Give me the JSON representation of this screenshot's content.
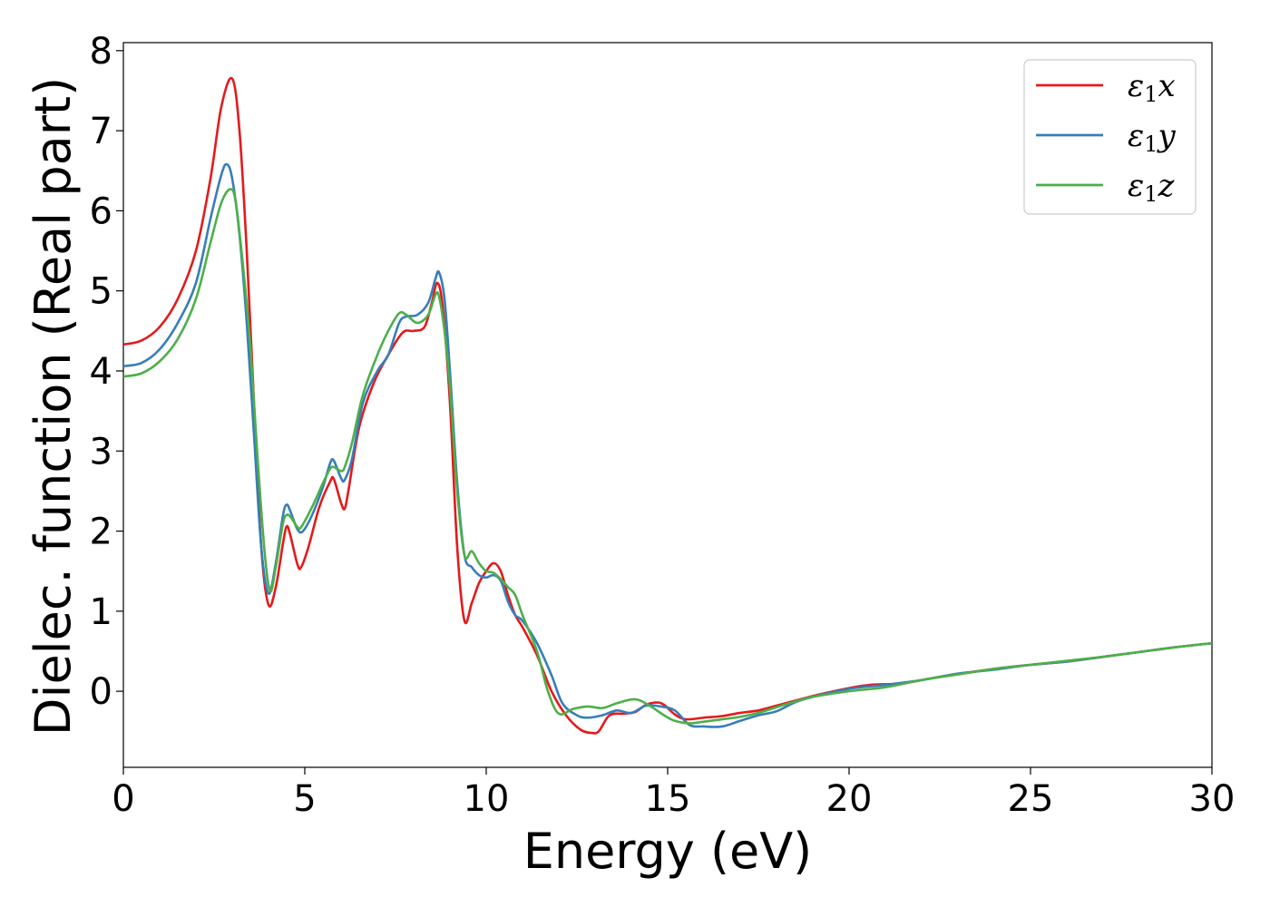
{
  "chart_data": {
    "type": "line",
    "title": "",
    "xlabel": "Energy (eV)",
    "ylabel": "Dielec. function (Real part)",
    "xlim": [
      0,
      30
    ],
    "ylim": [
      -0.95,
      8.1
    ],
    "xticks": [
      0,
      5,
      10,
      15,
      20,
      25,
      30
    ],
    "xtick_labels": [
      "0",
      "5",
      "10",
      "15",
      "20",
      "25",
      "30"
    ],
    "yticks": [
      0,
      1,
      2,
      3,
      4,
      5,
      6,
      7,
      8
    ],
    "ytick_labels": [
      "0",
      "1",
      "2",
      "3",
      "4",
      "5",
      "6",
      "7",
      "8"
    ],
    "grid": false,
    "legend": {
      "position": "top-right"
    },
    "series": [
      {
        "name": "ε₁x",
        "legend_base": "ε",
        "legend_sub": "1",
        "legend_suffix": "x",
        "color": "#e41a1c",
        "points": [
          [
            0,
            4.33
          ],
          [
            0.5,
            4.38
          ],
          [
            1.0,
            4.55
          ],
          [
            1.5,
            4.9
          ],
          [
            2.0,
            5.5
          ],
          [
            2.4,
            6.4
          ],
          [
            2.7,
            7.3
          ],
          [
            3.0,
            7.65
          ],
          [
            3.2,
            7.0
          ],
          [
            3.4,
            5.5
          ],
          [
            3.6,
            3.6
          ],
          [
            3.8,
            1.8
          ],
          [
            4.0,
            1.08
          ],
          [
            4.2,
            1.3
          ],
          [
            4.4,
            1.85
          ],
          [
            4.5,
            2.06
          ],
          [
            4.6,
            1.95
          ],
          [
            4.8,
            1.58
          ],
          [
            4.9,
            1.55
          ],
          [
            5.1,
            1.8
          ],
          [
            5.4,
            2.3
          ],
          [
            5.7,
            2.62
          ],
          [
            5.8,
            2.65
          ],
          [
            6.0,
            2.35
          ],
          [
            6.1,
            2.28
          ],
          [
            6.2,
            2.5
          ],
          [
            6.5,
            3.3
          ],
          [
            6.9,
            3.85
          ],
          [
            7.3,
            4.2
          ],
          [
            7.7,
            4.48
          ],
          [
            8.0,
            4.5
          ],
          [
            8.3,
            4.55
          ],
          [
            8.5,
            4.85
          ],
          [
            8.65,
            5.1
          ],
          [
            8.8,
            4.8
          ],
          [
            9.0,
            3.6
          ],
          [
            9.2,
            1.8
          ],
          [
            9.4,
            0.88
          ],
          [
            9.6,
            1.1
          ],
          [
            9.8,
            1.35
          ],
          [
            10.0,
            1.5
          ],
          [
            10.2,
            1.6
          ],
          [
            10.4,
            1.5
          ],
          [
            10.6,
            1.2
          ],
          [
            10.8,
            0.95
          ],
          [
            11.0,
            0.8
          ],
          [
            11.4,
            0.45
          ],
          [
            11.8,
            0.0
          ],
          [
            12.2,
            -0.3
          ],
          [
            12.6,
            -0.48
          ],
          [
            12.9,
            -0.52
          ],
          [
            13.1,
            -0.5
          ],
          [
            13.4,
            -0.3
          ],
          [
            13.8,
            -0.28
          ],
          [
            14.1,
            -0.26
          ],
          [
            14.4,
            -0.17
          ],
          [
            14.7,
            -0.14
          ],
          [
            14.9,
            -0.17
          ],
          [
            15.2,
            -0.29
          ],
          [
            15.5,
            -0.35
          ],
          [
            16.0,
            -0.33
          ],
          [
            16.5,
            -0.31
          ],
          [
            17.0,
            -0.27
          ],
          [
            17.5,
            -0.24
          ],
          [
            18.0,
            -0.18
          ],
          [
            19.0,
            -0.06
          ],
          [
            20.0,
            0.04
          ],
          [
            20.6,
            0.08
          ],
          [
            21.5,
            0.1
          ],
          [
            22.5,
            0.18
          ],
          [
            24.0,
            0.28
          ],
          [
            25.0,
            0.33
          ],
          [
            26.0,
            0.37
          ],
          [
            27.0,
            0.43
          ],
          [
            28.0,
            0.49
          ],
          [
            29.0,
            0.55
          ],
          [
            30.0,
            0.6
          ]
        ]
      },
      {
        "name": "ε₁y",
        "legend_base": "ε",
        "legend_sub": "1",
        "legend_suffix": "y",
        "color": "#377eb8",
        "points": [
          [
            0,
            4.06
          ],
          [
            0.5,
            4.1
          ],
          [
            1.0,
            4.27
          ],
          [
            1.5,
            4.6
          ],
          [
            2.0,
            5.1
          ],
          [
            2.4,
            5.9
          ],
          [
            2.7,
            6.45
          ],
          [
            2.85,
            6.58
          ],
          [
            3.0,
            6.4
          ],
          [
            3.2,
            5.7
          ],
          [
            3.4,
            4.6
          ],
          [
            3.6,
            3.2
          ],
          [
            3.8,
            1.8
          ],
          [
            4.0,
            1.22
          ],
          [
            4.2,
            1.6
          ],
          [
            4.4,
            2.2
          ],
          [
            4.5,
            2.33
          ],
          [
            4.6,
            2.25
          ],
          [
            4.8,
            2.02
          ],
          [
            4.95,
            2.0
          ],
          [
            5.2,
            2.2
          ],
          [
            5.5,
            2.55
          ],
          [
            5.7,
            2.85
          ],
          [
            5.8,
            2.88
          ],
          [
            6.0,
            2.66
          ],
          [
            6.1,
            2.64
          ],
          [
            6.3,
            2.9
          ],
          [
            6.6,
            3.6
          ],
          [
            7.0,
            4.0
          ],
          [
            7.3,
            4.2
          ],
          [
            7.6,
            4.6
          ],
          [
            7.8,
            4.68
          ],
          [
            8.1,
            4.7
          ],
          [
            8.4,
            4.85
          ],
          [
            8.6,
            5.15
          ],
          [
            8.7,
            5.23
          ],
          [
            8.85,
            4.9
          ],
          [
            9.0,
            4.0
          ],
          [
            9.2,
            2.6
          ],
          [
            9.4,
            1.7
          ],
          [
            9.6,
            1.55
          ],
          [
            9.8,
            1.45
          ],
          [
            10.0,
            1.42
          ],
          [
            10.2,
            1.45
          ],
          [
            10.4,
            1.38
          ],
          [
            10.6,
            1.12
          ],
          [
            10.8,
            0.95
          ],
          [
            11.0,
            0.88
          ],
          [
            11.4,
            0.6
          ],
          [
            11.8,
            0.2
          ],
          [
            12.1,
            -0.15
          ],
          [
            12.5,
            -0.3
          ],
          [
            12.8,
            -0.33
          ],
          [
            13.2,
            -0.3
          ],
          [
            13.6,
            -0.24
          ],
          [
            14.0,
            -0.27
          ],
          [
            14.4,
            -0.18
          ],
          [
            14.8,
            -0.19
          ],
          [
            15.2,
            -0.24
          ],
          [
            15.6,
            -0.42
          ],
          [
            16.0,
            -0.44
          ],
          [
            16.5,
            -0.44
          ],
          [
            17.0,
            -0.37
          ],
          [
            17.5,
            -0.3
          ],
          [
            18.0,
            -0.25
          ],
          [
            18.5,
            -0.14
          ],
          [
            19.0,
            -0.07
          ],
          [
            20.0,
            0.03
          ],
          [
            21.0,
            0.08
          ],
          [
            22.0,
            0.14
          ],
          [
            23.0,
            0.22
          ],
          [
            24.0,
            0.27
          ],
          [
            25.0,
            0.33
          ],
          [
            26.0,
            0.37
          ],
          [
            27.0,
            0.43
          ],
          [
            28.0,
            0.49
          ],
          [
            29.0,
            0.55
          ],
          [
            30.0,
            0.6
          ]
        ]
      },
      {
        "name": "ε₁z",
        "legend_base": "ε",
        "legend_sub": "1",
        "legend_suffix": "z",
        "color": "#4daf4a",
        "points": [
          [
            0,
            3.93
          ],
          [
            0.5,
            3.97
          ],
          [
            1.0,
            4.12
          ],
          [
            1.5,
            4.4
          ],
          [
            2.0,
            4.9
          ],
          [
            2.4,
            5.6
          ],
          [
            2.7,
            6.1
          ],
          [
            2.95,
            6.27
          ],
          [
            3.1,
            6.1
          ],
          [
            3.3,
            5.3
          ],
          [
            3.5,
            4.3
          ],
          [
            3.7,
            2.9
          ],
          [
            3.9,
            1.7
          ],
          [
            4.05,
            1.25
          ],
          [
            4.2,
            1.55
          ],
          [
            4.4,
            2.1
          ],
          [
            4.5,
            2.2
          ],
          [
            4.6,
            2.18
          ],
          [
            4.8,
            2.05
          ],
          [
            4.9,
            2.05
          ],
          [
            5.2,
            2.3
          ],
          [
            5.5,
            2.6
          ],
          [
            5.7,
            2.78
          ],
          [
            5.8,
            2.8
          ],
          [
            6.0,
            2.75
          ],
          [
            6.1,
            2.8
          ],
          [
            6.3,
            3.1
          ],
          [
            6.6,
            3.7
          ],
          [
            7.0,
            4.2
          ],
          [
            7.3,
            4.5
          ],
          [
            7.6,
            4.72
          ],
          [
            7.8,
            4.7
          ],
          [
            8.1,
            4.6
          ],
          [
            8.4,
            4.7
          ],
          [
            8.6,
            4.95
          ],
          [
            8.7,
            4.93
          ],
          [
            8.85,
            4.5
          ],
          [
            9.0,
            3.8
          ],
          [
            9.2,
            2.5
          ],
          [
            9.4,
            1.7
          ],
          [
            9.6,
            1.75
          ],
          [
            9.8,
            1.6
          ],
          [
            10.0,
            1.5
          ],
          [
            10.2,
            1.48
          ],
          [
            10.4,
            1.4
          ],
          [
            10.6,
            1.3
          ],
          [
            10.8,
            1.2
          ],
          [
            11.0,
            0.95
          ],
          [
            11.4,
            0.5
          ],
          [
            11.7,
            0.0
          ],
          [
            12.0,
            -0.28
          ],
          [
            12.4,
            -0.22
          ],
          [
            12.8,
            -0.19
          ],
          [
            13.2,
            -0.21
          ],
          [
            13.6,
            -0.15
          ],
          [
            14.1,
            -0.1
          ],
          [
            14.5,
            -0.18
          ],
          [
            14.9,
            -0.3
          ],
          [
            15.2,
            -0.37
          ],
          [
            15.6,
            -0.4
          ],
          [
            16.0,
            -0.38
          ],
          [
            16.5,
            -0.35
          ],
          [
            17.0,
            -0.32
          ],
          [
            17.5,
            -0.27
          ],
          [
            18.0,
            -0.2
          ],
          [
            18.5,
            -0.13
          ],
          [
            19.0,
            -0.07
          ],
          [
            20.0,
            0.0
          ],
          [
            21.0,
            0.05
          ],
          [
            22.0,
            0.14
          ],
          [
            23.0,
            0.21
          ],
          [
            24.0,
            0.28
          ],
          [
            25.0,
            0.33
          ],
          [
            26.0,
            0.38
          ],
          [
            27.0,
            0.43
          ],
          [
            28.0,
            0.49
          ],
          [
            29.0,
            0.55
          ],
          [
            30.0,
            0.6
          ]
        ]
      }
    ]
  }
}
